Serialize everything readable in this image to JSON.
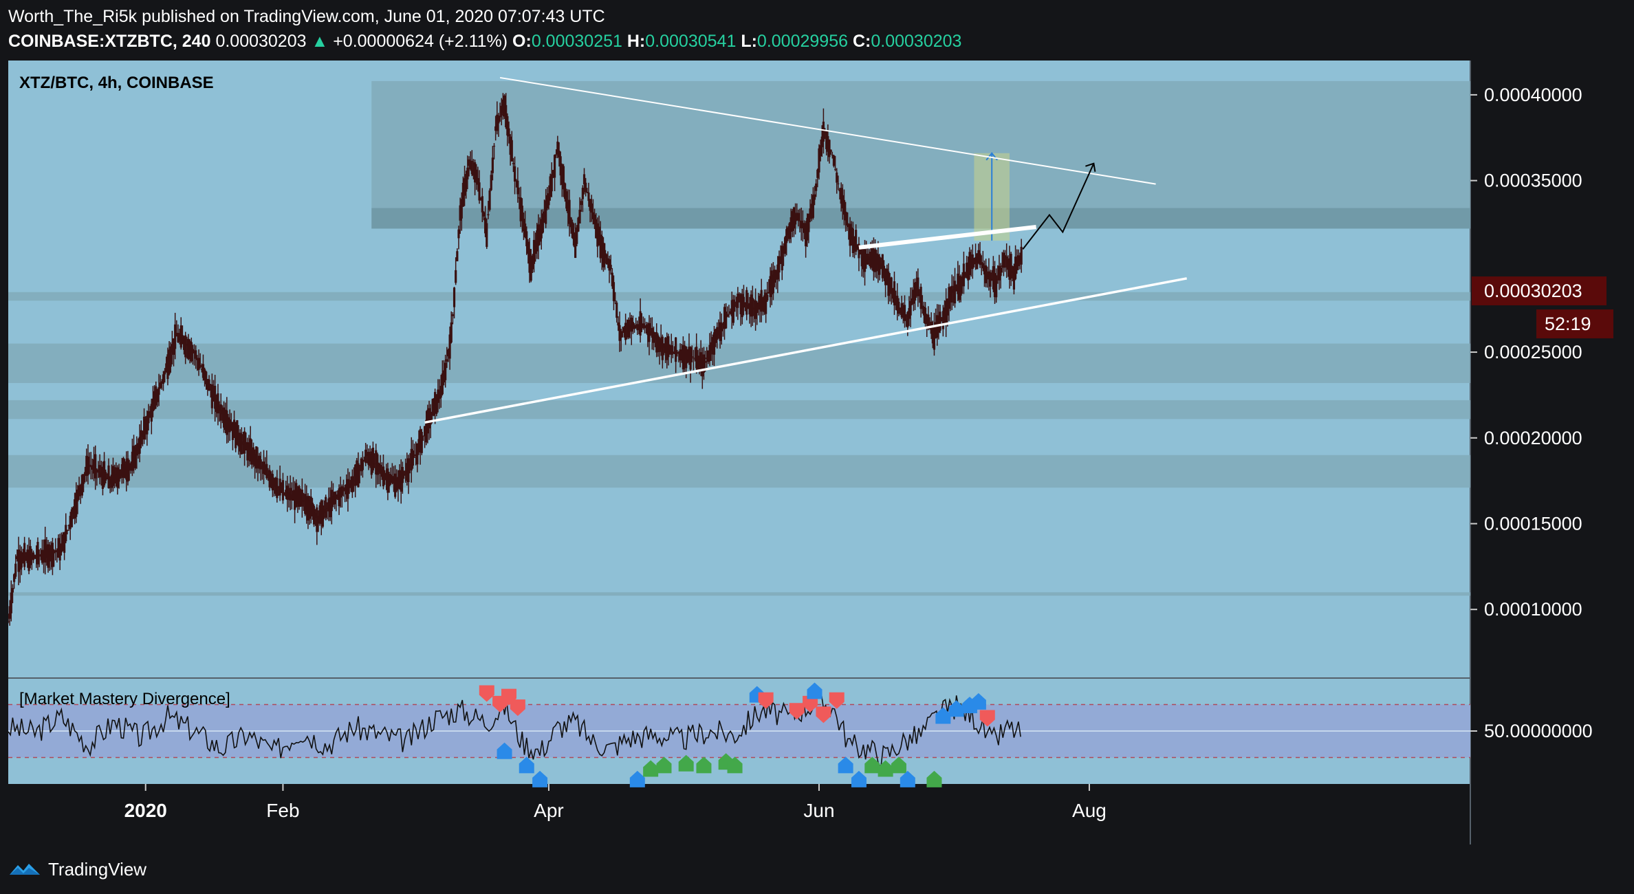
{
  "header": {
    "publisher_line": "Worth_The_Ri5k published on TradingView.com, June 01, 2020 07:07:43 UTC",
    "symbol": "COINBASE:XTZBTC, 240",
    "last": "0.00030203",
    "change_arrow": "▲",
    "change": "+0.00000624 (+2.11%)",
    "open_label": "O:",
    "open": "0.00030251",
    "high_label": "H:",
    "high": "0.00030541",
    "low_label": "L:",
    "low": "0.00029956",
    "close_label": "C:",
    "close": "0.00030203"
  },
  "colors": {
    "page_bg": "#141518",
    "chart_bg": "#8fc0d6",
    "zone": "#7fa9b8",
    "zone_dark": "#6f96a5",
    "candle": "#3a1010",
    "price_tag": "#5a0a0a",
    "indicator_band": "#93aad6",
    "bull_marker": "#43a84a",
    "bear_marker": "#f05a5a",
    "blue_marker": "#2a8ae8"
  },
  "footer": {
    "brand": "TradingView",
    "logo_icon": "tradingview-logo-icon"
  },
  "chart_data": {
    "type": "candlestick",
    "title": "XTZ/BTC, 4h, COINBASE",
    "ylim": [
      6e-05,
      0.00042
    ],
    "y_ticks": [
      "0.00040000",
      "0.00035000",
      "0.00025000",
      "0.00020000",
      "0.00015000",
      "0.00010000"
    ],
    "y_tick_values": [
      0.0004,
      0.00035,
      0.00025,
      0.0002,
      0.00015,
      0.0001
    ],
    "last_price_label": "0.00030203",
    "last_price": 0.00030203,
    "countdown": "52:19",
    "x_labels": [
      "2020",
      "Feb",
      "Apr",
      "Jun",
      "Aug"
    ],
    "x_label_days": [
      31,
      62,
      122,
      183,
      244
    ],
    "x_range_days": [
      0,
      330
    ],
    "price_path": [
      [
        0,
        9.3e-05
      ],
      [
        2,
        0.00013
      ],
      [
        5,
        0.00013
      ],
      [
        12,
        0.000135
      ],
      [
        18,
        0.000185
      ],
      [
        23,
        0.000175
      ],
      [
        28,
        0.000185
      ],
      [
        35,
        0.000235
      ],
      [
        38,
        0.00026
      ],
      [
        42,
        0.00025
      ],
      [
        47,
        0.00022
      ],
      [
        52,
        0.0002
      ],
      [
        56,
        0.000187
      ],
      [
        62,
        0.000168
      ],
      [
        67,
        0.000163
      ],
      [
        70,
        0.000153
      ],
      [
        74,
        0.000165
      ],
      [
        78,
        0.000175
      ],
      [
        81,
        0.00019
      ],
      [
        85,
        0.000178
      ],
      [
        88,
        0.000173
      ],
      [
        92,
        0.00019
      ],
      [
        95,
        0.00021
      ],
      [
        98,
        0.00023
      ],
      [
        100,
        0.00026
      ],
      [
        102,
        0.00033
      ],
      [
        104,
        0.00036
      ],
      [
        106,
        0.00035
      ],
      [
        108,
        0.00032
      ],
      [
        110,
        0.00038
      ],
      [
        112,
        0.000395
      ],
      [
        114,
        0.00036
      ],
      [
        116,
        0.00033
      ],
      [
        118,
        0.0003
      ],
      [
        120,
        0.00032
      ],
      [
        122,
        0.00034
      ],
      [
        124,
        0.00037
      ],
      [
        126,
        0.00034
      ],
      [
        128,
        0.00031
      ],
      [
        130,
        0.00035
      ],
      [
        132,
        0.00033
      ],
      [
        134,
        0.00031
      ],
      [
        136,
        0.0003
      ],
      [
        138,
        0.00026
      ],
      [
        140,
        0.000265
      ],
      [
        144,
        0.000265
      ],
      [
        147,
        0.000255
      ],
      [
        150,
        0.00025
      ],
      [
        154,
        0.000248
      ],
      [
        157,
        0.000242
      ],
      [
        159,
        0.000255
      ],
      [
        162,
        0.00027
      ],
      [
        165,
        0.00028
      ],
      [
        168,
        0.000275
      ],
      [
        171,
        0.00028
      ],
      [
        174,
        0.0003
      ],
      [
        176,
        0.00032
      ],
      [
        178,
        0.00033
      ],
      [
        180,
        0.00032
      ],
      [
        182,
        0.00034
      ],
      [
        184,
        0.00038
      ],
      [
        186,
        0.000365
      ],
      [
        188,
        0.00034
      ],
      [
        190,
        0.00032
      ],
      [
        193,
        0.000305
      ],
      [
        196,
        0.000305
      ],
      [
        199,
        0.00029
      ],
      [
        201,
        0.000275
      ],
      [
        203,
        0.00027
      ],
      [
        205,
        0.00029
      ],
      [
        207,
        0.00027
      ],
      [
        209,
        0.00026
      ],
      [
        211,
        0.00027
      ],
      [
        213,
        0.000285
      ],
      [
        215,
        0.00029
      ],
      [
        217,
        0.0003
      ],
      [
        219,
        0.000305
      ],
      [
        221,
        0.000295
      ],
      [
        223,
        0.00029
      ],
      [
        225,
        0.000305
      ],
      [
        227,
        0.000295
      ],
      [
        229,
        0.00031
      ]
    ],
    "annotations": {
      "resistance_line": [
        [
          111,
          0.00041
        ],
        [
          259,
          0.000348
        ]
      ],
      "support_line": [
        [
          94,
          0.000209
        ],
        [
          266,
          0.000293
        ]
      ],
      "breakout_line": [
        [
          192,
          0.000311
        ],
        [
          232,
          0.000323
        ]
      ],
      "projection_path": [
        [
          229,
          0.00031
        ],
        [
          235,
          0.00033
        ],
        [
          238,
          0.00032
        ],
        [
          245,
          0.00036
        ]
      ],
      "target_box": [
        [
          218,
          0.000315
        ],
        [
          226,
          0.000366
        ]
      ]
    },
    "zones": [
      [
        0.000322,
        0.000408
      ],
      [
        0.000322,
        0.000334
      ],
      [
        0.00028,
        0.000285
      ],
      [
        0.000232,
        0.000255
      ],
      [
        0.000211,
        0.000222
      ],
      [
        0.000171,
        0.00019
      ],
      [
        0.000108,
        0.00011
      ]
    ],
    "indicator": {
      "name": "[Market Mastery Divergence]",
      "tick": "50.00000000",
      "tick_value": 50,
      "range": [
        20,
        80
      ],
      "band": [
        35,
        65
      ],
      "path": [
        [
          0,
          52
        ],
        [
          6,
          49
        ],
        [
          12,
          58
        ],
        [
          18,
          42
        ],
        [
          24,
          55
        ],
        [
          30,
          46
        ],
        [
          36,
          58
        ],
        [
          42,
          50
        ],
        [
          48,
          40
        ],
        [
          54,
          48
        ],
        [
          60,
          38
        ],
        [
          66,
          50
        ],
        [
          72,
          42
        ],
        [
          78,
          52
        ],
        [
          84,
          48
        ],
        [
          90,
          44
        ],
        [
          96,
          57
        ],
        [
          102,
          62
        ],
        [
          108,
          55
        ],
        [
          112,
          64
        ],
        [
          116,
          44
        ],
        [
          120,
          38
        ],
        [
          124,
          52
        ],
        [
          128,
          55
        ],
        [
          132,
          44
        ],
        [
          136,
          40
        ],
        [
          140,
          46
        ],
        [
          146,
          48
        ],
        [
          152,
          45
        ],
        [
          158,
          50
        ],
        [
          164,
          48
        ],
        [
          170,
          62
        ],
        [
          176,
          58
        ],
        [
          182,
          66
        ],
        [
          186,
          64
        ],
        [
          190,
          42
        ],
        [
          194,
          40
        ],
        [
          198,
          36
        ],
        [
          202,
          44
        ],
        [
          206,
          48
        ],
        [
          210,
          60
        ],
        [
          214,
          64
        ],
        [
          218,
          58
        ],
        [
          222,
          44
        ],
        [
          226,
          52
        ],
        [
          229,
          48
        ]
      ],
      "markers": [
        {
          "day": 108,
          "v": 72,
          "kind": "bear"
        },
        {
          "day": 111,
          "v": 66,
          "kind": "bear"
        },
        {
          "day": 113,
          "v": 70,
          "kind": "bear"
        },
        {
          "day": 115,
          "v": 64,
          "kind": "bear"
        },
        {
          "day": 112,
          "v": 38,
          "kind": "blue"
        },
        {
          "day": 117,
          "v": 30,
          "kind": "blue"
        },
        {
          "day": 120,
          "v": 22,
          "kind": "blue"
        },
        {
          "day": 142,
          "v": 22,
          "kind": "blue"
        },
        {
          "day": 145,
          "v": 28,
          "kind": "bull"
        },
        {
          "day": 148,
          "v": 30,
          "kind": "bull"
        },
        {
          "day": 153,
          "v": 31,
          "kind": "bull"
        },
        {
          "day": 157,
          "v": 30,
          "kind": "bull"
        },
        {
          "day": 162,
          "v": 32,
          "kind": "bull"
        },
        {
          "day": 164,
          "v": 30,
          "kind": "bull"
        },
        {
          "day": 169,
          "v": 70,
          "kind": "blue"
        },
        {
          "day": 171,
          "v": 68,
          "kind": "bear"
        },
        {
          "day": 178,
          "v": 62,
          "kind": "bear"
        },
        {
          "day": 181,
          "v": 66,
          "kind": "bear"
        },
        {
          "day": 184,
          "v": 60,
          "kind": "bear"
        },
        {
          "day": 187,
          "v": 68,
          "kind": "bear"
        },
        {
          "day": 182,
          "v": 72,
          "kind": "blue"
        },
        {
          "day": 189,
          "v": 30,
          "kind": "blue"
        },
        {
          "day": 192,
          "v": 22,
          "kind": "blue"
        },
        {
          "day": 195,
          "v": 30,
          "kind": "bull"
        },
        {
          "day": 198,
          "v": 28,
          "kind": "bull"
        },
        {
          "day": 201,
          "v": 30,
          "kind": "bull"
        },
        {
          "day": 203,
          "v": 22,
          "kind": "blue"
        },
        {
          "day": 209,
          "v": 22,
          "kind": "bull"
        },
        {
          "day": 211,
          "v": 58,
          "kind": "blue"
        },
        {
          "day": 214,
          "v": 62,
          "kind": "blue"
        },
        {
          "day": 217,
          "v": 64,
          "kind": "blue"
        },
        {
          "day": 219,
          "v": 66,
          "kind": "blue"
        },
        {
          "day": 221,
          "v": 58,
          "kind": "bear"
        }
      ]
    }
  }
}
